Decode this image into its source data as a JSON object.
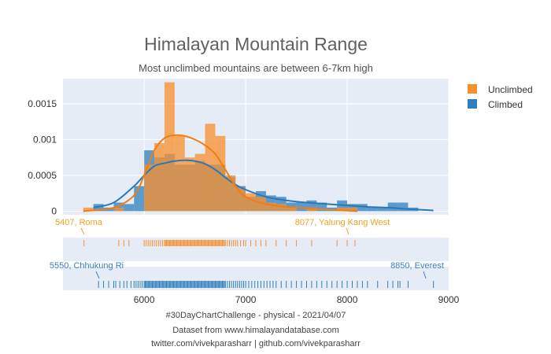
{
  "chart_data": {
    "type": "histogram",
    "title": "Himalayan Mountain Range",
    "subtitle": "Most unclimbed mountains are between 6-7km high",
    "xlim": [
      5200,
      9000
    ],
    "ylim": [
      -5e-05,
      0.00185
    ],
    "x_ticks": [
      6000,
      7000,
      8000,
      9000
    ],
    "x_tick_labels": [
      "6000",
      "7000",
      "8000",
      "9000"
    ],
    "y_ticks": [
      0,
      0.0005,
      0.001,
      0.0015
    ],
    "y_tick_labels": [
      "0",
      "0.0005",
      "0.001",
      "0.0015"
    ],
    "bin_width": 100,
    "colors": {
      "unclimbed": "#f98f2b",
      "climbed": "#2f7fbd",
      "plot_bg": "#e5ecf6"
    },
    "legend_position": "top-right",
    "series": [
      {
        "name": "Unclimbed",
        "bins": [
          {
            "x0": 5400,
            "h": 5e-05
          },
          {
            "x0": 5700,
            "h": 5e-05
          },
          {
            "x0": 6000,
            "h": 0.00065
          },
          {
            "x0": 6100,
            "h": 0.00095
          },
          {
            "x0": 6200,
            "h": 0.0018
          },
          {
            "x0": 6300,
            "h": 0.00105
          },
          {
            "x0": 6400,
            "h": 0.00075
          },
          {
            "x0": 6500,
            "h": 0.0008
          },
          {
            "x0": 6600,
            "h": 0.00122
          },
          {
            "x0": 6700,
            "h": 0.00105
          },
          {
            "x0": 6800,
            "h": 0.0005
          },
          {
            "x0": 6900,
            "h": 0.00033
          },
          {
            "x0": 7000,
            "h": 0.00025
          },
          {
            "x0": 7100,
            "h": 0.0002
          },
          {
            "x0": 7200,
            "h": 0.00012
          },
          {
            "x0": 7300,
            "h": 0.0001
          },
          {
            "x0": 7400,
            "h": 5e-05
          },
          {
            "x0": 7600,
            "h": 5e-05
          },
          {
            "x0": 7900,
            "h": 5e-05
          },
          {
            "x0": 8000,
            "h": 5e-05
          }
        ],
        "kde": [
          [
            5400,
            0.0
          ],
          [
            5700,
            5e-05
          ],
          [
            5900,
            0.00022
          ],
          [
            6000,
            0.0005
          ],
          [
            6100,
            0.00085
          ],
          [
            6200,
            0.00102
          ],
          [
            6300,
            0.00106
          ],
          [
            6400,
            0.00105
          ],
          [
            6500,
            0.001
          ],
          [
            6600,
            0.00092
          ],
          [
            6700,
            0.0008
          ],
          [
            6800,
            0.00058
          ],
          [
            6900,
            0.00035
          ],
          [
            7000,
            0.0002
          ],
          [
            7200,
            0.0001
          ],
          [
            7500,
            5e-05
          ],
          [
            8100,
            0.0
          ]
        ],
        "rug_label": "5407, Roma",
        "rug_label_right": "8077, Yalung Kang West",
        "rug": [
          5407,
          5750,
          5800,
          5850,
          6000,
          6020,
          6040,
          6060,
          6080,
          6100,
          6120,
          6140,
          6160,
          6180,
          6200,
          6210,
          6220,
          6230,
          6240,
          6250,
          6260,
          6270,
          6280,
          6290,
          6300,
          6310,
          6320,
          6330,
          6340,
          6350,
          6360,
          6370,
          6380,
          6390,
          6400,
          6410,
          6420,
          6430,
          6440,
          6450,
          6460,
          6470,
          6480,
          6490,
          6500,
          6510,
          6520,
          6530,
          6540,
          6550,
          6560,
          6570,
          6580,
          6590,
          6600,
          6610,
          6620,
          6630,
          6640,
          6650,
          6660,
          6670,
          6680,
          6690,
          6700,
          6710,
          6720,
          6730,
          6740,
          6750,
          6760,
          6770,
          6780,
          6790,
          6800,
          6820,
          6840,
          6860,
          6880,
          6900,
          6920,
          6950,
          6980,
          7000,
          7050,
          7100,
          7150,
          7200,
          7300,
          7400,
          7500,
          7650,
          7900,
          8000,
          8077
        ]
      },
      {
        "name": "Climbed",
        "bins": [
          {
            "x0": 5500,
            "h": 0.0001
          },
          {
            "x0": 5600,
            "h": 5e-05
          },
          {
            "x0": 5700,
            "h": 0.00012
          },
          {
            "x0": 5800,
            "h": 0.0001
          },
          {
            "x0": 5900,
            "h": 0.00035
          },
          {
            "x0": 6000,
            "h": 0.00085
          },
          {
            "x0": 6100,
            "h": 0.00075
          },
          {
            "x0": 6200,
            "h": 0.0008
          },
          {
            "x0": 6300,
            "h": 0.00065
          },
          {
            "x0": 6400,
            "h": 0.00065
          },
          {
            "x0": 6500,
            "h": 0.0007
          },
          {
            "x0": 6600,
            "h": 0.00065
          },
          {
            "x0": 6700,
            "h": 0.00065
          },
          {
            "x0": 6800,
            "h": 0.00048
          },
          {
            "x0": 6900,
            "h": 0.00035
          },
          {
            "x0": 7000,
            "h": 0.0002
          },
          {
            "x0": 7100,
            "h": 0.00028
          },
          {
            "x0": 7200,
            "h": 0.00022
          },
          {
            "x0": 7300,
            "h": 0.0002
          },
          {
            "x0": 7400,
            "h": 0.00012
          },
          {
            "x0": 7500,
            "h": 0.00013
          },
          {
            "x0": 7600,
            "h": 0.00015
          },
          {
            "x0": 7700,
            "h": 0.00012
          },
          {
            "x0": 7800,
            "h": 5e-05
          },
          {
            "x0": 7900,
            "h": 0.00015
          },
          {
            "x0": 8000,
            "h": 0.0001
          },
          {
            "x0": 8100,
            "h": 0.0001
          },
          {
            "x0": 8200,
            "h": 5e-05
          },
          {
            "x0": 8300,
            "h": 5e-05
          },
          {
            "x0": 8400,
            "h": 0.00012
          },
          {
            "x0": 8500,
            "h": 0.00012
          },
          {
            "x0": 8600,
            "h": 5e-05
          }
        ],
        "kde": [
          [
            5500,
            5e-05
          ],
          [
            5700,
            0.00012
          ],
          [
            5900,
            0.00035
          ],
          [
            6000,
            0.0005
          ],
          [
            6100,
            0.00063
          ],
          [
            6200,
            0.00067
          ],
          [
            6300,
            0.0007
          ],
          [
            6400,
            0.00071
          ],
          [
            6500,
            0.0007
          ],
          [
            6600,
            0.00066
          ],
          [
            6700,
            0.00058
          ],
          [
            6800,
            0.00047
          ],
          [
            6900,
            0.00037
          ],
          [
            7000,
            0.0003
          ],
          [
            7200,
            0.0002
          ],
          [
            7400,
            0.00015
          ],
          [
            7600,
            0.00012
          ],
          [
            7800,
            0.0001
          ],
          [
            8000,
            8e-05
          ],
          [
            8200,
            6e-05
          ],
          [
            8400,
            5e-05
          ],
          [
            8600,
            3e-05
          ],
          [
            8850,
            1e-05
          ]
        ],
        "rug_label": "5550, Chhukung Ri",
        "rug_label_right": "8850, Everest",
        "rug": [
          5550,
          5600,
          5650,
          5700,
          5720,
          5760,
          5800,
          5830,
          5870,
          5900,
          5920,
          5940,
          5960,
          5980,
          6000,
          6010,
          6020,
          6030,
          6040,
          6050,
          6060,
          6070,
          6080,
          6090,
          6100,
          6110,
          6120,
          6130,
          6140,
          6150,
          6160,
          6170,
          6180,
          6190,
          6200,
          6210,
          6220,
          6230,
          6240,
          6250,
          6260,
          6270,
          6280,
          6290,
          6300,
          6310,
          6320,
          6330,
          6340,
          6350,
          6360,
          6370,
          6380,
          6390,
          6400,
          6410,
          6420,
          6430,
          6440,
          6450,
          6460,
          6470,
          6480,
          6490,
          6500,
          6510,
          6520,
          6530,
          6540,
          6550,
          6560,
          6570,
          6580,
          6590,
          6600,
          6610,
          6620,
          6630,
          6640,
          6650,
          6660,
          6670,
          6680,
          6690,
          6700,
          6710,
          6720,
          6730,
          6740,
          6750,
          6760,
          6770,
          6780,
          6790,
          6800,
          6820,
          6840,
          6860,
          6880,
          6900,
          6920,
          6940,
          6960,
          6980,
          7000,
          7030,
          7060,
          7090,
          7120,
          7150,
          7180,
          7210,
          7240,
          7270,
          7300,
          7350,
          7400,
          7450,
          7500,
          7550,
          7600,
          7650,
          7700,
          7750,
          7800,
          7850,
          7900,
          7950,
          8000,
          8050,
          8100,
          8150,
          8200,
          8300,
          8400,
          8450,
          8500,
          8520,
          8600,
          8850
        ]
      }
    ]
  },
  "footer": {
    "line1": "#30DayChartChallenge - physical - 2021/04/07",
    "line2": "Dataset from www.himalayandatabase.com",
    "line3": "twitter.com/vivekparasharr | github.com/vivekparasharr"
  }
}
